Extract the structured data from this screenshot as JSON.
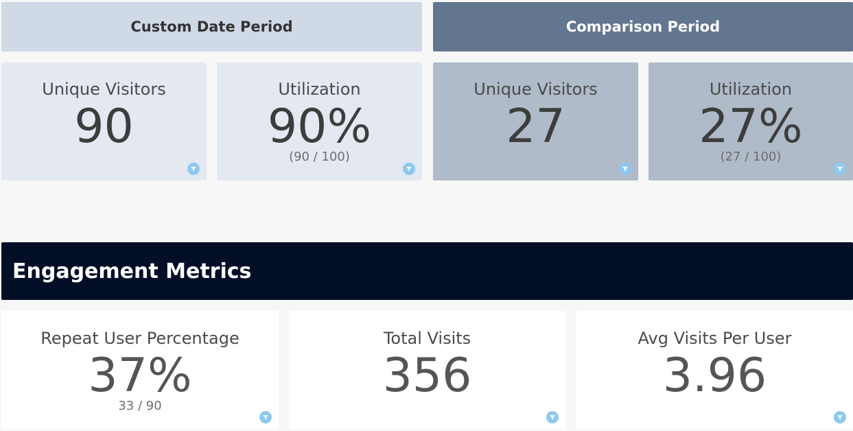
{
  "custom_period": {
    "header": "Custom Date Period",
    "unique_visitors": {
      "label": "Unique Visitors",
      "value": "90"
    },
    "utilization": {
      "label": "Utilization",
      "value": "90%",
      "detail": "(90 / 100)"
    }
  },
  "comparison_period": {
    "header": "Comparison Period",
    "unique_visitors": {
      "label": "Unique Visitors",
      "value": "27"
    },
    "utilization": {
      "label": "Utilization",
      "value": "27%",
      "detail": "(27 / 100)"
    }
  },
  "engagement": {
    "title": "Engagement Metrics",
    "repeat_user": {
      "label": "Repeat User Percentage",
      "value": "37%",
      "detail": "33 / 90"
    },
    "total_visits": {
      "label": "Total Visits",
      "value": "356"
    },
    "avg_visits": {
      "label": "Avg Visits Per User",
      "value": "3.96"
    }
  },
  "icons": {
    "filter": "filter-icon"
  },
  "colors": {
    "custom_header_bg": "#d0d9e6",
    "comparison_header_bg": "#62768f",
    "custom_tile_bg": "#e3e8f1",
    "comparison_tile_bg": "#b0bbc9",
    "section_header_bg": "#020f26",
    "filter_icon": "#8ec8f0"
  }
}
